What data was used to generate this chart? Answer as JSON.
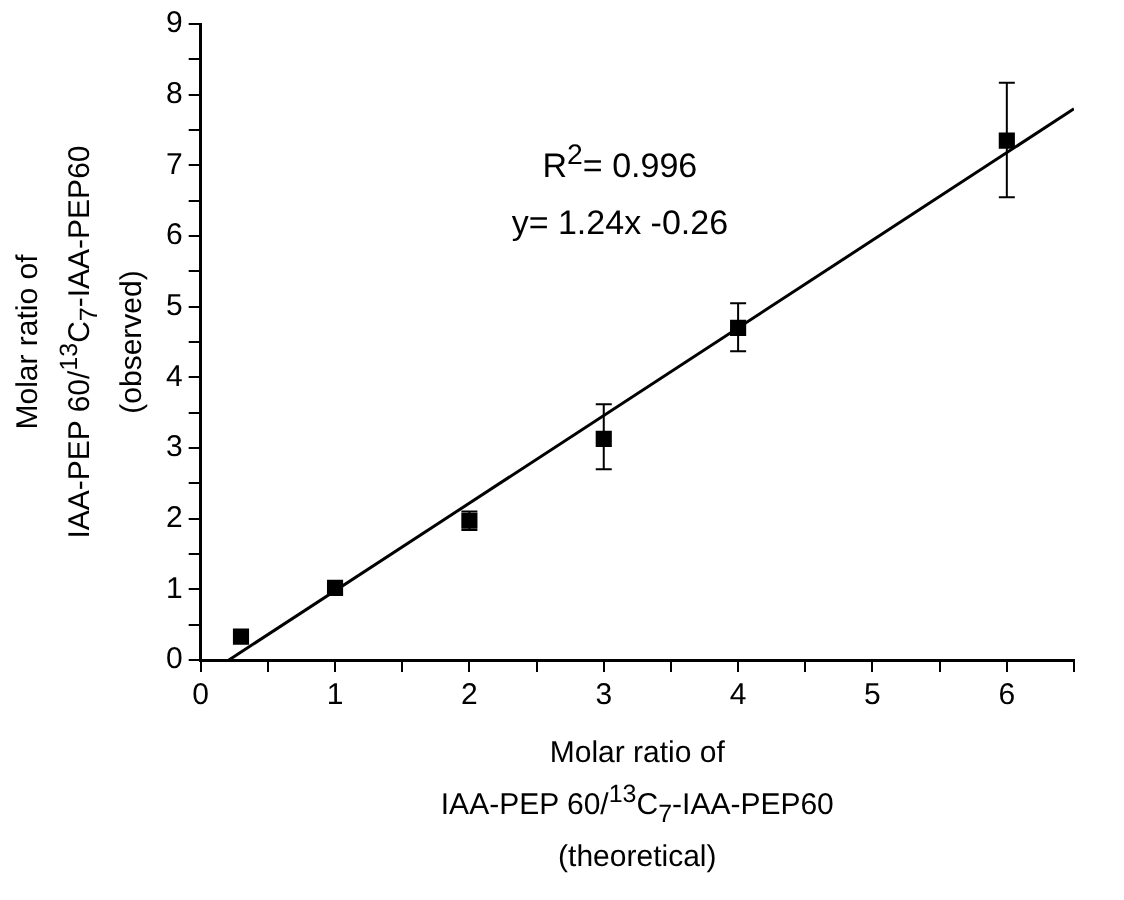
{
  "chart_data": {
    "type": "scatter",
    "xlabel": "Molar ratio of\nIAA-PEP 60/$^{13}$C$_{7}$-IAA-PEP60\n(theoretical)",
    "ylabel": "Molar ratio of\nIAA-PEP 60/$^{13}$C$_{7}$-IAA-PEP60\n(observed)",
    "annotations": [
      "R$^{2}$= 0.996",
      "y= 1.24x -0.26"
    ],
    "xlim": [
      0,
      6.5
    ],
    "ylim": [
      0,
      9
    ],
    "xticks": [
      0,
      {
        "value": 0.5,
        "label": null
      },
      1,
      {
        "value": 1.5,
        "label": null
      },
      2,
      {
        "value": 2.5,
        "label": null
      },
      3,
      {
        "value": 3.5,
        "label": null
      },
      4,
      {
        "value": 4.5,
        "label": null
      },
      5,
      {
        "value": 5.5,
        "label": null
      },
      6,
      {
        "value": 6.5,
        "label": null
      }
    ],
    "yticks": [
      0,
      {
        "value": 0.5,
        "label": null
      },
      1,
      {
        "value": 1.5,
        "label": null
      },
      2,
      {
        "value": 2.5,
        "label": null
      },
      3,
      {
        "value": 3.5,
        "label": null
      },
      4,
      {
        "value": 4.5,
        "label": null
      },
      5,
      {
        "value": 5.5,
        "label": null
      },
      6,
      {
        "value": 6.5,
        "label": null
      },
      7,
      {
        "value": 7.5,
        "label": null
      },
      8,
      {
        "value": 8.5,
        "label": null
      },
      9
    ],
    "grid": false,
    "legend": false,
    "marker": "square",
    "series": [
      {
        "color": "#000000",
        "x": [
          0.3,
          1,
          2,
          3,
          4,
          6
        ],
        "values": [
          0.33,
          1.02,
          1.97,
          3.13,
          4.7,
          7.35
        ],
        "errors": [
          null,
          null,
          [
            1.84,
            2.1
          ],
          [
            2.7,
            3.62
          ],
          [
            4.37,
            5.05
          ],
          [
            6.55,
            8.17
          ]
        ]
      },
      {
        "type": "line",
        "color": "#000000",
        "marker": "none",
        "x": [
          0.21,
          6.5
        ],
        "values": [
          0,
          7.8
        ]
      }
    ]
  }
}
